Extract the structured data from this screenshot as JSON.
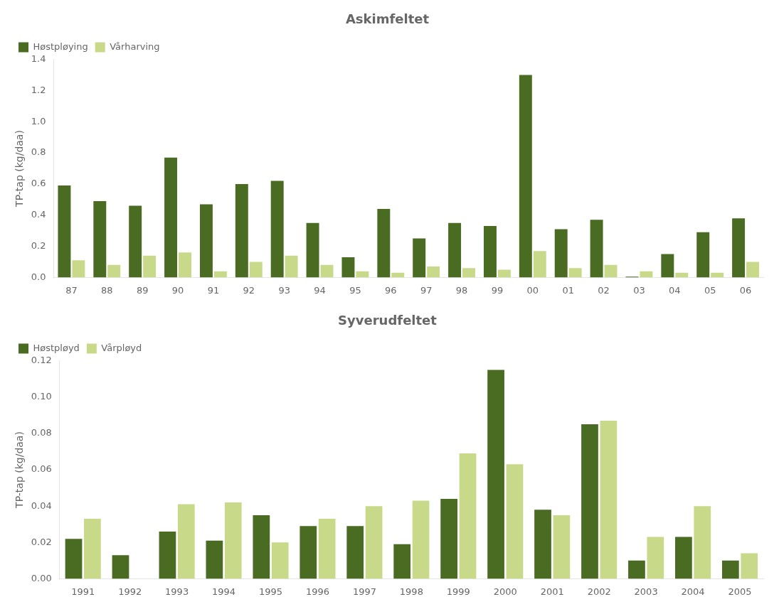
{
  "chart_data": [
    {
      "type": "bar",
      "title": "Askimfeltet",
      "ylabel": "TP-tap (kg/daa)",
      "categories": [
        "87",
        "88",
        "89",
        "90",
        "91",
        "92",
        "93",
        "94",
        "95",
        "96",
        "97",
        "98",
        "99",
        "00",
        "01",
        "02",
        "03",
        "04",
        "05",
        "06"
      ],
      "series": [
        {
          "name": "Høstpløying",
          "color": "#4a6b22",
          "values": [
            0.59,
            0.49,
            0.46,
            0.77,
            0.47,
            0.6,
            0.62,
            0.35,
            0.13,
            0.44,
            0.25,
            0.35,
            0.33,
            1.3,
            0.31,
            0.37,
            0.005,
            0.15,
            0.29,
            0.38
          ]
        },
        {
          "name": "Vårharving",
          "color": "#c8da8a",
          "values": [
            0.11,
            0.08,
            0.14,
            0.16,
            0.04,
            0.1,
            0.14,
            0.08,
            0.04,
            0.03,
            0.07,
            0.06,
            0.05,
            0.17,
            0.06,
            0.08,
            0.04,
            0.03,
            0.03,
            0.1
          ]
        }
      ],
      "ylim": [
        0,
        1.4
      ],
      "yticks": [
        {
          "value": 0,
          "label": "0.0"
        },
        0.2,
        0.4,
        0.6,
        0.8,
        {
          "value": 1,
          "label": "1.0"
        },
        1.2,
        1.4
      ],
      "grid": false,
      "legend": "upper left"
    },
    {
      "type": "bar",
      "title": "Syverudfeltet",
      "ylabel": "TP-tap (kg/daa)",
      "categories": [
        "1991",
        "1992",
        "1993",
        "1994",
        "1995",
        "1996",
        "1997",
        "1998",
        "1999",
        "2000",
        "2001",
        "2002",
        "2003",
        "2004",
        "2005"
      ],
      "series": [
        {
          "name": "Høstpløyd",
          "color": "#4a6b22",
          "values": [
            0.022,
            0.013,
            0.026,
            0.021,
            0.035,
            0.029,
            0.029,
            0.019,
            0.044,
            0.115,
            0.038,
            0.085,
            0.01,
            0.023,
            0.01
          ]
        },
        {
          "name": "Vårpløyd",
          "color": "#c8da8a",
          "values": [
            0.033,
            0.0,
            0.041,
            0.042,
            0.02,
            0.033,
            0.04,
            0.043,
            0.069,
            0.063,
            0.035,
            0.087,
            0.023,
            0.04,
            0.014
          ]
        }
      ],
      "ylim": [
        0,
        0.12
      ],
      "yticks": [
        {
          "value": 0,
          "label": "0.00"
        },
        0.02,
        0.04,
        0.06,
        0.08,
        {
          "value": 0.1,
          "label": "0.10"
        },
        0.12
      ],
      "grid": false,
      "legend": "upper left"
    }
  ]
}
